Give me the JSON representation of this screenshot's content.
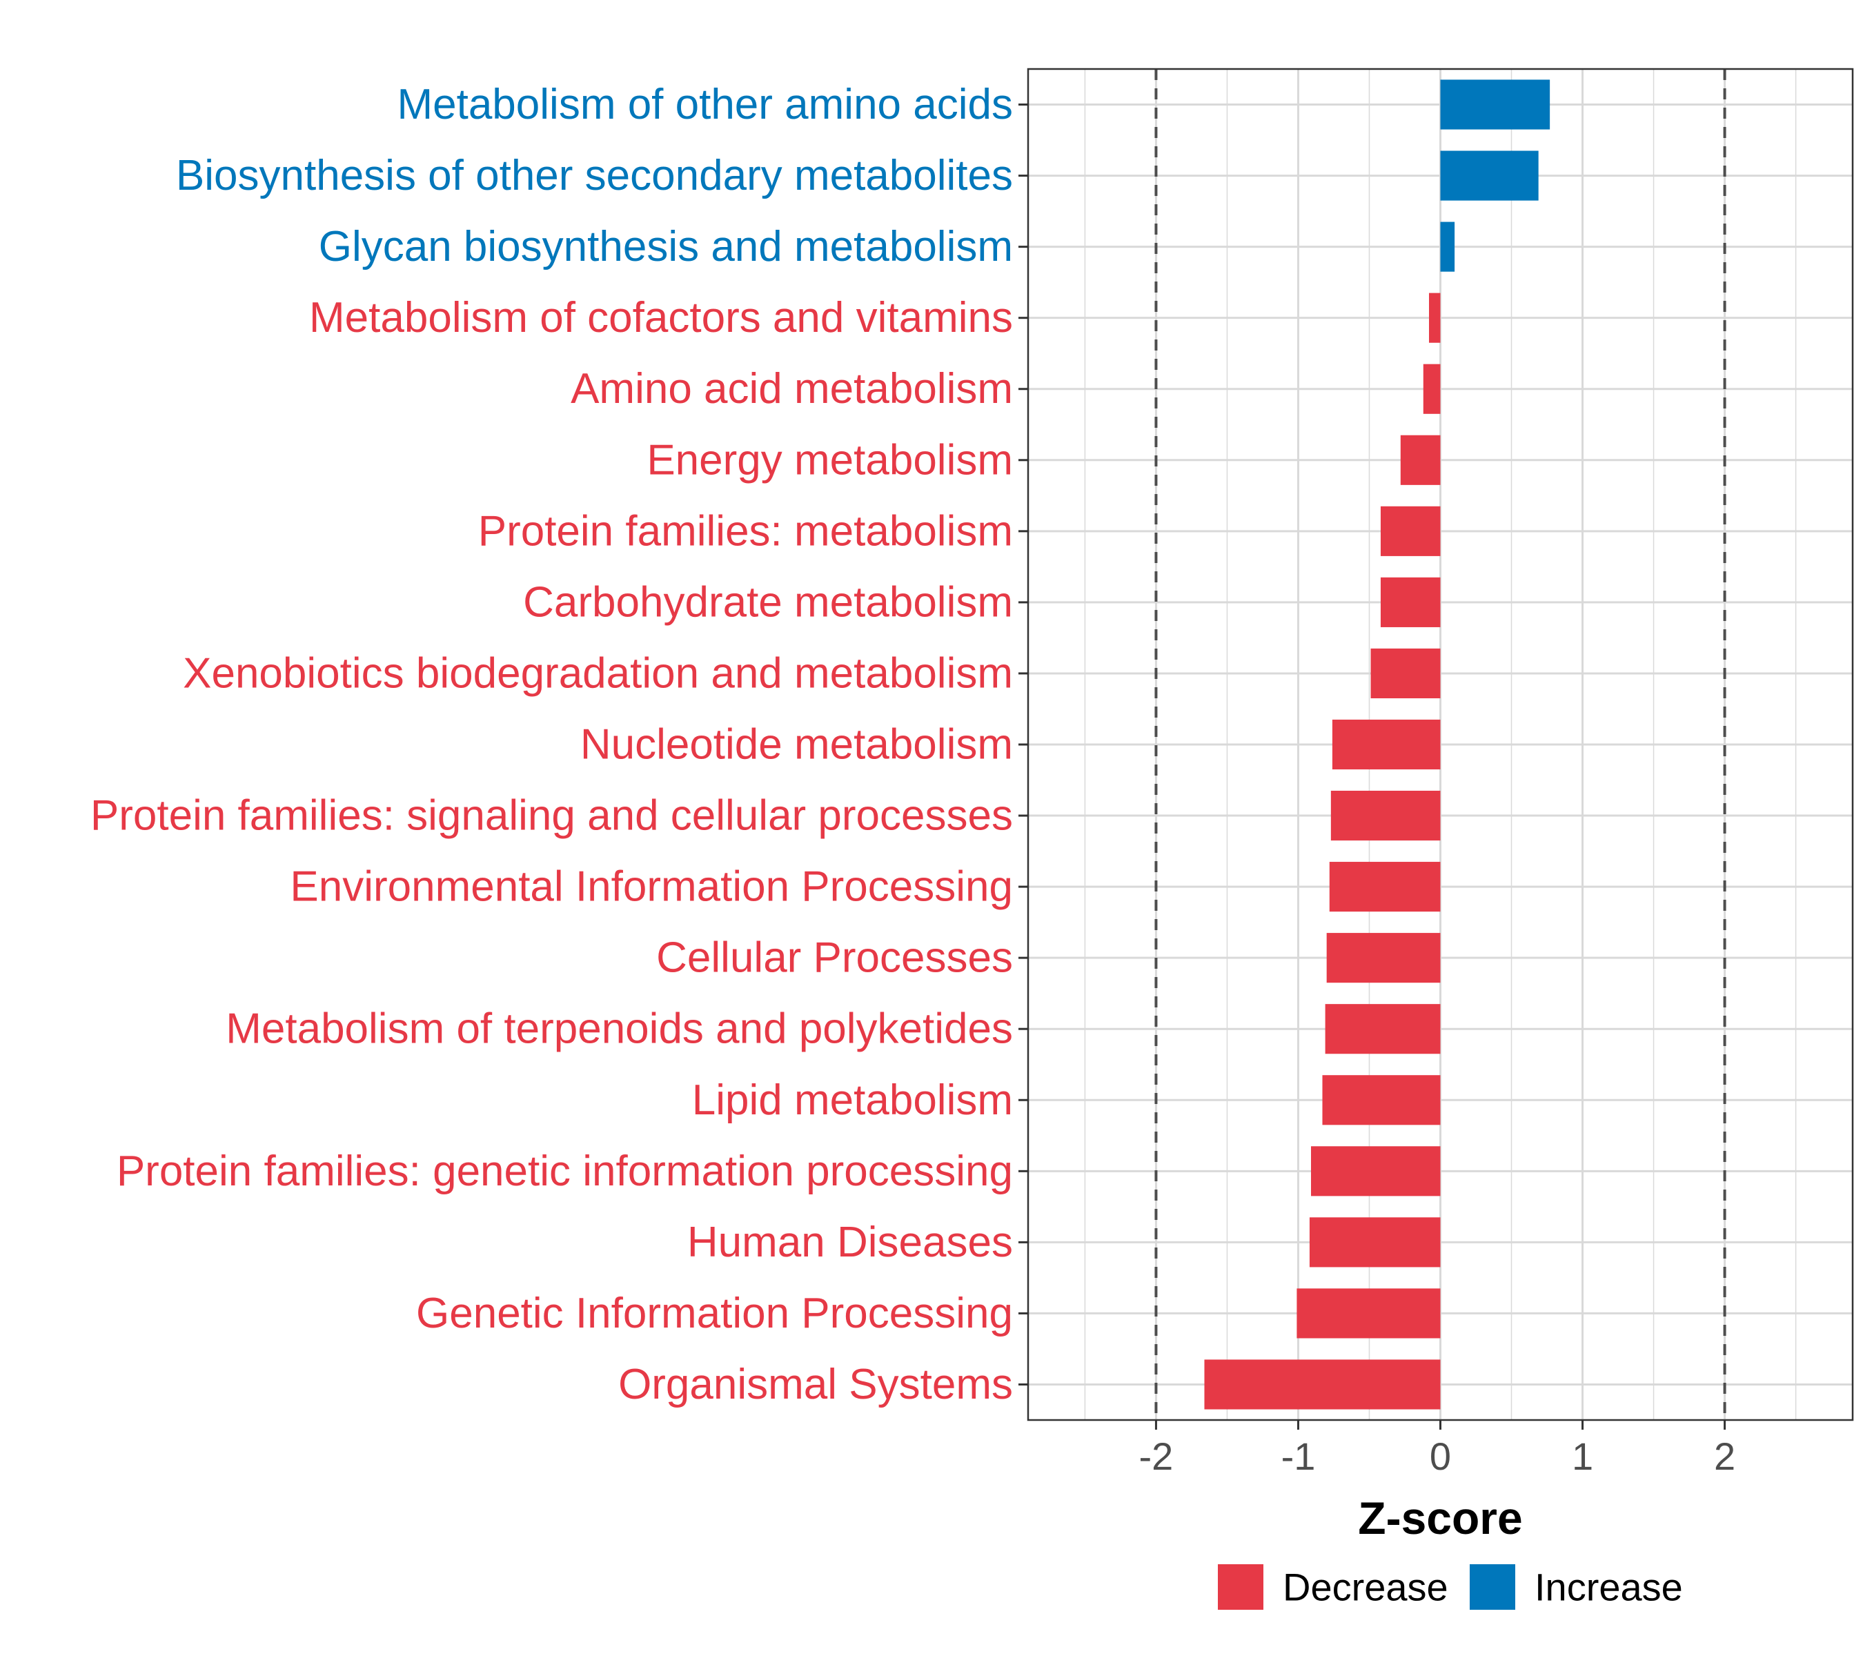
{
  "chart_data": {
    "type": "bar",
    "orientation": "horizontal",
    "categories": [
      "Metabolism of other amino acids",
      "Biosynthesis of other secondary metabolites",
      "Glycan biosynthesis and metabolism",
      "Metabolism of cofactors and vitamins",
      "Amino acid metabolism",
      "Energy metabolism",
      "Protein families: metabolism",
      "Carbohydrate metabolism",
      "Xenobiotics biodegradation and metabolism",
      "Nucleotide metabolism",
      "Protein families: signaling and cellular processes",
      "Environmental Information Processing",
      "Cellular Processes",
      "Metabolism of terpenoids and polyketides",
      "Lipid metabolism",
      "Protein families: genetic information processing",
      "Human Diseases",
      "Genetic Information Processing",
      "Organismal Systems"
    ],
    "values": [
      0.77,
      0.69,
      0.1,
      -0.08,
      -0.12,
      -0.28,
      -0.42,
      -0.42,
      -0.49,
      -0.76,
      -0.77,
      -0.78,
      -0.8,
      -0.81,
      -0.83,
      -0.91,
      -0.92,
      -1.01,
      -1.66
    ],
    "directions": [
      "Increase",
      "Increase",
      "Increase",
      "Decrease",
      "Decrease",
      "Decrease",
      "Decrease",
      "Decrease",
      "Decrease",
      "Decrease",
      "Decrease",
      "Decrease",
      "Decrease",
      "Decrease",
      "Decrease",
      "Decrease",
      "Decrease",
      "Decrease",
      "Decrease"
    ],
    "xlabel": "Z-score",
    "ylabel": "",
    "xlim": [
      -2.9,
      2.9
    ],
    "xticks": [
      -2,
      -1,
      0,
      1,
      2
    ],
    "xtick_labels": [
      "-2",
      "-1",
      "0",
      "1",
      "2"
    ],
    "reference_lines": [
      -2,
      2
    ],
    "grid": true,
    "legend": {
      "position": "bottom",
      "entries": [
        {
          "label": "Decrease",
          "color": "#e63946"
        },
        {
          "label": "Increase",
          "color": "#0077bb"
        }
      ]
    },
    "colors": {
      "Decrease": "#e63946",
      "Increase": "#0077bb",
      "grid": "#d9d9d9",
      "reference_line": "#4d4d4d",
      "axis": "#333333"
    }
  }
}
